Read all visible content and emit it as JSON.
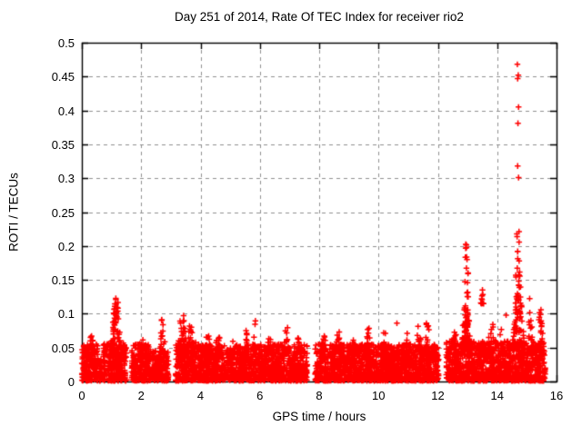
{
  "chart_data": {
    "type": "scatter",
    "title": "Day 251 of 2014, Rate Of TEC Index for receiver rio2",
    "xlabel": "GPS time / hours",
    "ylabel": "ROTI / TECUs",
    "xlim": [
      0,
      16
    ],
    "ylim": [
      0,
      0.5
    ],
    "xtick_labels": [
      "0",
      "2",
      "4",
      "6",
      "8",
      "10",
      "12",
      "14",
      "16"
    ],
    "xtick_values": [
      0,
      2,
      4,
      6,
      8,
      10,
      12,
      14,
      16
    ],
    "ytick_labels": [
      "0",
      "0.05",
      "0.1",
      "0.15",
      "0.2",
      "0.25",
      "0.3",
      "0.35",
      "0.4",
      "0.45",
      "0.5"
    ],
    "ytick_values": [
      0,
      0.05,
      0.1,
      0.15,
      0.2,
      0.25,
      0.3,
      0.35,
      0.4,
      0.45,
      0.5
    ],
    "grid": "dashed",
    "grid_color": "#8f8f8f",
    "axis_color": "#000000",
    "marker": "plus",
    "marker_color": "#ff0000",
    "background": "#ffffff",
    "legend": "none",
    "seed": 20140251,
    "band_bottom": 0.001,
    "band_segments": [
      [
        0.0,
        0.55,
        0.055,
        330
      ],
      [
        0.58,
        0.7,
        0.035,
        200
      ],
      [
        0.72,
        1.5,
        0.058,
        330
      ],
      [
        1.68,
        2.33,
        0.055,
        330
      ],
      [
        2.36,
        2.92,
        0.045,
        300
      ],
      [
        3.16,
        3.85,
        0.06,
        340
      ],
      [
        3.85,
        7.6,
        0.055,
        330
      ],
      [
        7.86,
        12.03,
        0.055,
        330
      ],
      [
        12.28,
        13.35,
        0.06,
        330
      ],
      [
        13.35,
        14.48,
        0.06,
        330
      ],
      [
        14.48,
        15.62,
        0.06,
        330
      ]
    ],
    "spike_clusters": [
      [
        0.3,
        0.18,
        0.04,
        0.068,
        14
      ],
      [
        1.15,
        0.2,
        0.04,
        0.115,
        70
      ],
      [
        1.18,
        0.08,
        0.1,
        0.138,
        8
      ],
      [
        2.0,
        0.18,
        0.04,
        0.062,
        14
      ],
      [
        2.72,
        0.1,
        0.04,
        0.097,
        22
      ],
      [
        3.38,
        0.18,
        0.04,
        0.102,
        50
      ],
      [
        3.65,
        0.18,
        0.04,
        0.085,
        25
      ],
      [
        4.25,
        0.12,
        0.04,
        0.073,
        16
      ],
      [
        4.6,
        0.15,
        0.04,
        0.066,
        12
      ],
      [
        5.05,
        0.12,
        0.04,
        0.062,
        10
      ],
      [
        5.55,
        0.1,
        0.04,
        0.079,
        14
      ],
      [
        5.83,
        0.07,
        0.04,
        0.09,
        10
      ],
      [
        6.3,
        0.15,
        0.04,
        0.068,
        14
      ],
      [
        6.9,
        0.12,
        0.04,
        0.081,
        16
      ],
      [
        7.3,
        0.07,
        0.045,
        0.067,
        8
      ],
      [
        8.15,
        0.12,
        0.04,
        0.071,
        14
      ],
      [
        8.65,
        0.12,
        0.04,
        0.076,
        14
      ],
      [
        9.2,
        0.15,
        0.04,
        0.071,
        14
      ],
      [
        9.65,
        0.12,
        0.04,
        0.081,
        14
      ],
      [
        10.2,
        0.12,
        0.04,
        0.076,
        14
      ],
      [
        10.9,
        0.15,
        0.04,
        0.079,
        14
      ],
      [
        11.35,
        0.12,
        0.04,
        0.082,
        14
      ],
      [
        11.65,
        0.1,
        0.04,
        0.093,
        16
      ],
      [
        11.9,
        0.09,
        0.04,
        0.076,
        10
      ],
      [
        12.55,
        0.15,
        0.04,
        0.092,
        20
      ],
      [
        12.95,
        0.2,
        0.05,
        0.1,
        60
      ],
      [
        12.97,
        0.1,
        0.08,
        0.205,
        40
      ],
      [
        13.5,
        0.06,
        0.115,
        0.138,
        10
      ],
      [
        13.8,
        0.15,
        0.04,
        0.09,
        14
      ],
      [
        14.15,
        0.1,
        0.04,
        0.082,
        10
      ],
      [
        14.72,
        0.22,
        0.05,
        0.13,
        60
      ],
      [
        14.7,
        0.12,
        0.1,
        0.225,
        40
      ],
      [
        15.12,
        0.1,
        0.04,
        0.126,
        20
      ],
      [
        15.45,
        0.12,
        0.04,
        0.106,
        28
      ]
    ],
    "outlier_points": [
      [
        10.62,
        0.086
      ],
      [
        14.3,
        0.098
      ],
      [
        14.68,
        0.468
      ],
      [
        14.71,
        0.452
      ],
      [
        14.69,
        0.447
      ],
      [
        14.72,
        0.405
      ],
      [
        14.7,
        0.381
      ],
      [
        14.69,
        0.318
      ],
      [
        14.72,
        0.301
      ]
    ]
  }
}
